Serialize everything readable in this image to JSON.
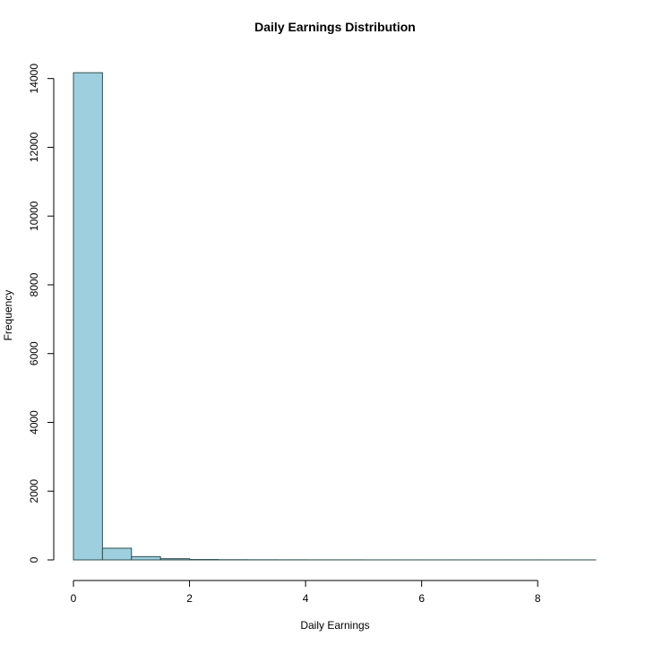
{
  "chart_data": {
    "type": "bar",
    "title": "Daily Earnings Distribution",
    "xlabel": "Daily Earnings",
    "ylabel": "Frequency",
    "bar_color": "#9ecfdf",
    "bar_border_color": "#2f4f4f",
    "xlim": [
      0,
      9
    ],
    "ylim": [
      0,
      14200
    ],
    "x_ticks": [
      0,
      2,
      4,
      6,
      8
    ],
    "y_ticks": [
      0,
      2000,
      4000,
      6000,
      8000,
      10000,
      12000,
      14000
    ],
    "bins": [
      {
        "start": 0.0,
        "end": 0.5,
        "count": 14170
      },
      {
        "start": 0.5,
        "end": 1.0,
        "count": 340
      },
      {
        "start": 1.0,
        "end": 1.5,
        "count": 95
      },
      {
        "start": 1.5,
        "end": 2.0,
        "count": 35
      },
      {
        "start": 2.0,
        "end": 2.5,
        "count": 12
      },
      {
        "start": 2.5,
        "end": 3.0,
        "count": 6
      },
      {
        "start": 3.0,
        "end": 3.5,
        "count": 4
      },
      {
        "start": 3.5,
        "end": 4.0,
        "count": 3
      },
      {
        "start": 4.0,
        "end": 4.5,
        "count": 2
      },
      {
        "start": 4.5,
        "end": 5.0,
        "count": 2
      },
      {
        "start": 5.0,
        "end": 5.5,
        "count": 1
      },
      {
        "start": 5.5,
        "end": 6.0,
        "count": 1
      },
      {
        "start": 6.0,
        "end": 6.5,
        "count": 1
      },
      {
        "start": 6.5,
        "end": 7.0,
        "count": 1
      },
      {
        "start": 7.0,
        "end": 7.5,
        "count": 1
      },
      {
        "start": 7.5,
        "end": 8.0,
        "count": 1
      },
      {
        "start": 8.0,
        "end": 8.5,
        "count": 1
      },
      {
        "start": 8.5,
        "end": 9.0,
        "count": 1
      }
    ]
  }
}
